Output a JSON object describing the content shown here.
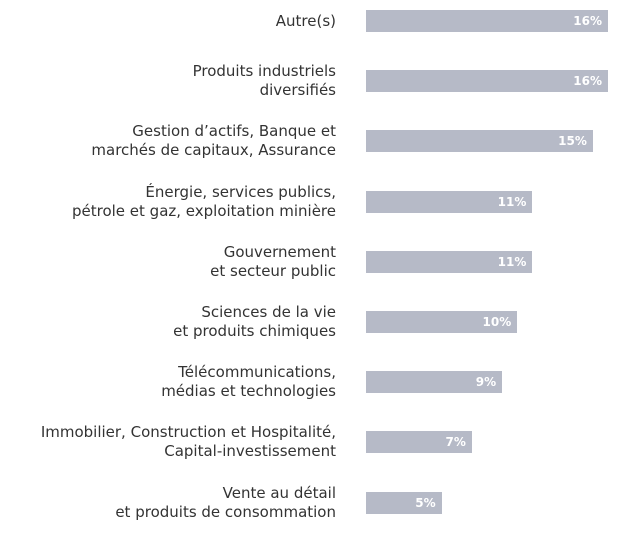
{
  "chart_data": {
    "type": "bar",
    "orientation": "horizontal",
    "categories": [
      "Autre(s)",
      "Produits industriels\ndiversifiés",
      "Gestion d’actifs, Banque et\nmarchés de capitaux, Assurance",
      "Énergie, services publics,\npétrole et gaz, exploitation minière",
      "Gouvernement\net secteur public",
      "Sciences de la vie\net produits chimiques",
      "Télécommunications,\nmédias et technologies",
      "Immobilier, Construction et Hospitalité,\nCapital-investissement",
      "Vente au détail\net produits de consommation"
    ],
    "values": [
      16,
      16,
      15,
      11,
      11,
      10,
      9,
      7,
      5
    ],
    "value_labels": [
      "16%",
      "16%",
      "15%",
      "11%",
      "11%",
      "10%",
      "9%",
      "7%",
      "5%"
    ],
    "color": "#b6bac7"
  }
}
